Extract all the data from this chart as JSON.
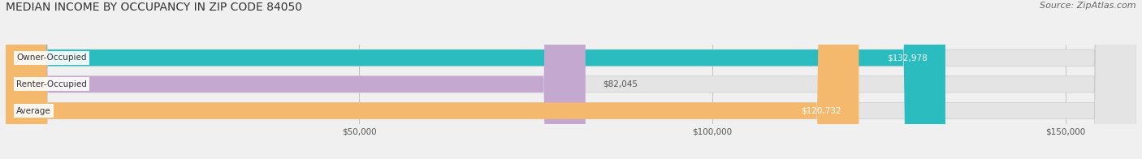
{
  "title": "MEDIAN INCOME BY OCCUPANCY IN ZIP CODE 84050",
  "source": "Source: ZipAtlas.com",
  "categories": [
    "Owner-Occupied",
    "Renter-Occupied",
    "Average"
  ],
  "values": [
    132978,
    82045,
    120732
  ],
  "bar_colors": [
    "#2bbcbf",
    "#c4a8d0",
    "#f5b96e"
  ],
  "bar_labels": [
    "$132,978",
    "$82,045",
    "$120,732"
  ],
  "label_inside": [
    true,
    false,
    true
  ],
  "xlim": [
    0,
    160000
  ],
  "xticks": [
    50000,
    100000,
    150000
  ],
  "xticklabels": [
    "$50,000",
    "$100,000",
    "$150,000"
  ],
  "background_color": "#f0f0f0",
  "bar_bg_color": "#e4e4e4",
  "title_fontsize": 10,
  "source_fontsize": 8,
  "label_fontsize": 7.5,
  "tick_fontsize": 7.5
}
